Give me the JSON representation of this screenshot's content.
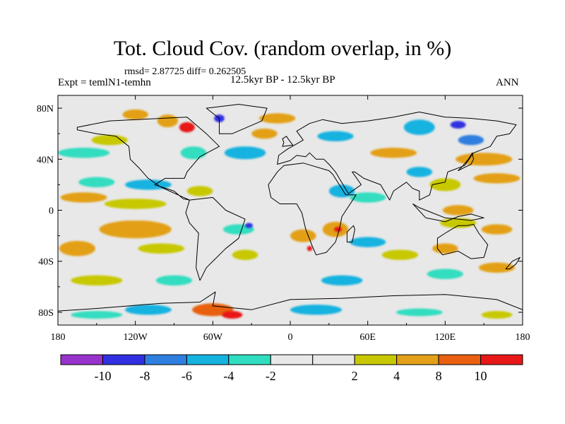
{
  "chart_data": {
    "type": "heatmap",
    "title": "Tot. Cloud Cov. (random overlap, in %)",
    "stats_text": "rmsd= 2.87725 diff= 0.262505",
    "experiment_text": "Expt = temlN1-temhn",
    "period_text": "12.5kyr BP - 12.5kyr BP",
    "season_text": "ANN",
    "x_ticks": [
      {
        "value": -180,
        "label": "180"
      },
      {
        "value": -120,
        "label": "120W"
      },
      {
        "value": -60,
        "label": "60W"
      },
      {
        "value": 0,
        "label": "0"
      },
      {
        "value": 60,
        "label": "60E"
      },
      {
        "value": 120,
        "label": "120E"
      },
      {
        "value": 180,
        "label": "180"
      }
    ],
    "y_ticks": [
      {
        "value": 80,
        "label": "80N"
      },
      {
        "value": 40,
        "label": "40N"
      },
      {
        "value": 0,
        "label": "0"
      },
      {
        "value": -40,
        "label": "40S"
      },
      {
        "value": -80,
        "label": "80S"
      }
    ],
    "xlim": [
      -180,
      180
    ],
    "ylim": [
      -90,
      90
    ],
    "colorbar": {
      "colors": [
        "#9932CC",
        "#3030E0",
        "#2E7FE0",
        "#16B2E0",
        "#30DDC0",
        "#E8E8E8",
        "#E8E8E8",
        "#C8C800",
        "#E3A018",
        "#E86010",
        "#E81818"
      ],
      "labels": [
        {
          "index": 1,
          "label": "-10"
        },
        {
          "index": 2,
          "label": "-8"
        },
        {
          "index": 3,
          "label": "-6"
        },
        {
          "index": 4,
          "label": "-4"
        },
        {
          "index": 5,
          "label": "-2"
        },
        {
          "index": 6,
          "label": "2"
        },
        {
          "index": 7,
          "label": "4"
        },
        {
          "index": 8,
          "label": "8"
        },
        {
          "index": 9,
          "label": "10"
        }
      ]
    },
    "anomaly_patches": [
      {
        "lon": -80,
        "lat": 65,
        "rlon": 6,
        "rlat": 4,
        "value": 11
      },
      {
        "lon": -95,
        "lat": 70,
        "rlon": 8,
        "rlat": 5,
        "value": 6
      },
      {
        "lon": -55,
        "lat": 72,
        "rlon": 4,
        "rlat": 3,
        "value": -9
      },
      {
        "lon": -120,
        "lat": 75,
        "rlon": 10,
        "rlat": 4,
        "value": 5
      },
      {
        "lon": -10,
        "lat": 72,
        "rlon": 14,
        "rlat": 4,
        "value": 5
      },
      {
        "lon": -160,
        "lat": 45,
        "rlon": 20,
        "rlat": 4,
        "value": -3
      },
      {
        "lon": -140,
        "lat": 55,
        "rlon": 14,
        "rlat": 4,
        "value": 3
      },
      {
        "lon": -75,
        "lat": 45,
        "rlon": 10,
        "rlat": 5,
        "value": -3
      },
      {
        "lon": -35,
        "lat": 45,
        "rlon": 16,
        "rlat": 5,
        "value": -5
      },
      {
        "lon": -20,
        "lat": 60,
        "rlon": 10,
        "rlat": 4,
        "value": 5
      },
      {
        "lon": 35,
        "lat": 58,
        "rlon": 14,
        "rlat": 4,
        "value": -4
      },
      {
        "lon": 100,
        "lat": 65,
        "rlon": 12,
        "rlat": 6,
        "value": -5
      },
      {
        "lon": 130,
        "lat": 67,
        "rlon": 6,
        "rlat": 3,
        "value": -9
      },
      {
        "lon": 140,
        "lat": 55,
        "rlon": 10,
        "rlat": 4,
        "value": -7
      },
      {
        "lon": 80,
        "lat": 45,
        "rlon": 18,
        "rlat": 4,
        "value": 4
      },
      {
        "lon": 150,
        "lat": 40,
        "rlon": 22,
        "rlat": 5,
        "value": 5
      },
      {
        "lon": 160,
        "lat": 25,
        "rlon": 18,
        "rlat": 4,
        "value": 7
      },
      {
        "lon": -160,
        "lat": 10,
        "rlon": 18,
        "rlat": 4,
        "value": 5
      },
      {
        "lon": -150,
        "lat": 22,
        "rlon": 14,
        "rlat": 4,
        "value": -3
      },
      {
        "lon": -110,
        "lat": 20,
        "rlon": 18,
        "rlat": 4,
        "value": -4
      },
      {
        "lon": -120,
        "lat": 5,
        "rlon": 24,
        "rlat": 4,
        "value": 3
      },
      {
        "lon": -70,
        "lat": 15,
        "rlon": 10,
        "rlat": 4,
        "value": 3
      },
      {
        "lon": 40,
        "lat": 15,
        "rlon": 10,
        "rlat": 5,
        "value": -5
      },
      {
        "lon": 60,
        "lat": 10,
        "rlon": 14,
        "rlat": 4,
        "value": -3
      },
      {
        "lon": 120,
        "lat": 20,
        "rlon": 12,
        "rlat": 5,
        "value": 3
      },
      {
        "lon": 100,
        "lat": 30,
        "rlon": 10,
        "rlat": 4,
        "value": -4
      },
      {
        "lon": 130,
        "lat": 0,
        "rlon": 12,
        "rlat": 4,
        "value": 4
      },
      {
        "lon": -120,
        "lat": -15,
        "rlon": 28,
        "rlat": 7,
        "value": 7
      },
      {
        "lon": -165,
        "lat": -30,
        "rlon": 14,
        "rlat": 6,
        "value": 5
      },
      {
        "lon": -100,
        "lat": -30,
        "rlon": 18,
        "rlat": 4,
        "value": 3
      },
      {
        "lon": -40,
        "lat": -15,
        "rlon": 12,
        "rlat": 4,
        "value": -3
      },
      {
        "lon": -32,
        "lat": -12,
        "rlon": 3,
        "rlat": 2,
        "value": -9
      },
      {
        "lon": -35,
        "lat": -35,
        "rlon": 10,
        "rlat": 4,
        "value": 3
      },
      {
        "lon": 10,
        "lat": -20,
        "rlon": 10,
        "rlat": 5,
        "value": 5
      },
      {
        "lon": 15,
        "lat": -30,
        "rlon": 2,
        "rlat": 2,
        "value": 11
      },
      {
        "lon": 35,
        "lat": -15,
        "rlon": 10,
        "rlat": 6,
        "value": 7
      },
      {
        "lon": 37,
        "lat": -15,
        "rlon": 3,
        "rlat": 2,
        "value": 11
      },
      {
        "lon": 60,
        "lat": -25,
        "rlon": 14,
        "rlat": 4,
        "value": -4
      },
      {
        "lon": 85,
        "lat": -35,
        "rlon": 14,
        "rlat": 4,
        "value": 3
      },
      {
        "lon": 120,
        "lat": -30,
        "rlon": 10,
        "rlat": 4,
        "value": 7
      },
      {
        "lon": 160,
        "lat": -15,
        "rlon": 12,
        "rlat": 4,
        "value": 4
      },
      {
        "lon": 130,
        "lat": -10,
        "rlon": 14,
        "rlat": 4,
        "value": 3
      },
      {
        "lon": -150,
        "lat": -55,
        "rlon": 20,
        "rlat": 4,
        "value": 3
      },
      {
        "lon": -90,
        "lat": -55,
        "rlon": 14,
        "rlat": 4,
        "value": -3
      },
      {
        "lon": 40,
        "lat": -55,
        "rlon": 16,
        "rlat": 4,
        "value": -4
      },
      {
        "lon": 120,
        "lat": -50,
        "rlon": 14,
        "rlat": 4,
        "value": -3
      },
      {
        "lon": 160,
        "lat": -45,
        "rlon": 14,
        "rlat": 4,
        "value": 4
      },
      {
        "lon": -60,
        "lat": -78,
        "rlon": 16,
        "rlat": 5,
        "value": 8
      },
      {
        "lon": -45,
        "lat": -82,
        "rlon": 8,
        "rlat": 3,
        "value": 11
      },
      {
        "lon": -110,
        "lat": -78,
        "rlon": 18,
        "rlat": 4,
        "value": -4
      },
      {
        "lon": -150,
        "lat": -82,
        "rlon": 20,
        "rlat": 3,
        "value": -3
      },
      {
        "lon": 20,
        "lat": -78,
        "rlon": 20,
        "rlat": 4,
        "value": -4
      },
      {
        "lon": 100,
        "lat": -80,
        "rlon": 18,
        "rlat": 3,
        "value": -3
      },
      {
        "lon": 160,
        "lat": -82,
        "rlon": 12,
        "rlat": 3,
        "value": 3
      }
    ],
    "land_outlines": [
      {
        "name": "north-america",
        "points": [
          [
            -165,
            65
          ],
          [
            -140,
            70
          ],
          [
            -100,
            72
          ],
          [
            -80,
            73
          ],
          [
            -65,
            60
          ],
          [
            -55,
            50
          ],
          [
            -70,
            42
          ],
          [
            -80,
            30
          ],
          [
            -82,
            25
          ],
          [
            -97,
            25
          ],
          [
            -105,
            20
          ],
          [
            -90,
            15
          ],
          [
            -83,
            9
          ],
          [
            -78,
            8
          ],
          [
            -100,
            18
          ],
          [
            -110,
            25
          ],
          [
            -117,
            33
          ],
          [
            -124,
            40
          ],
          [
            -125,
            50
          ],
          [
            -135,
            58
          ],
          [
            -150,
            60
          ],
          [
            -165,
            63
          ]
        ]
      },
      {
        "name": "greenland",
        "points": [
          [
            -55,
            60
          ],
          [
            -45,
            60
          ],
          [
            -22,
            70
          ],
          [
            -18,
            80
          ],
          [
            -40,
            83
          ],
          [
            -65,
            80
          ],
          [
            -55,
            72
          ]
        ]
      },
      {
        "name": "south-america",
        "points": [
          [
            -78,
            8
          ],
          [
            -60,
            10
          ],
          [
            -50,
            0
          ],
          [
            -35,
            -7
          ],
          [
            -40,
            -22
          ],
          [
            -50,
            -30
          ],
          [
            -58,
            -38
          ],
          [
            -65,
            -45
          ],
          [
            -70,
            -55
          ],
          [
            -73,
            -45
          ],
          [
            -72,
            -30
          ],
          [
            -71,
            -18
          ],
          [
            -78,
            -10
          ],
          [
            -81,
            -2
          ]
        ]
      },
      {
        "name": "africa",
        "points": [
          [
            -17,
            20
          ],
          [
            -10,
            30
          ],
          [
            -5,
            35
          ],
          [
            10,
            37
          ],
          [
            30,
            31
          ],
          [
            33,
            28
          ],
          [
            43,
            12
          ],
          [
            51,
            12
          ],
          [
            40,
            -5
          ],
          [
            38,
            -15
          ],
          [
            35,
            -25
          ],
          [
            28,
            -33
          ],
          [
            20,
            -35
          ],
          [
            17,
            -28
          ],
          [
            12,
            -15
          ],
          [
            9,
            -2
          ],
          [
            5,
            5
          ],
          [
            -8,
            5
          ],
          [
            -15,
            10
          ]
        ]
      },
      {
        "name": "eurasia",
        "points": [
          [
            -10,
            36
          ],
          [
            -9,
            43
          ],
          [
            -2,
            48
          ],
          [
            5,
            52
          ],
          [
            10,
            55
          ],
          [
            5,
            62
          ],
          [
            15,
            68
          ],
          [
            25,
            71
          ],
          [
            40,
            68
          ],
          [
            60,
            70
          ],
          [
            80,
            73
          ],
          [
            100,
            77
          ],
          [
            120,
            73
          ],
          [
            140,
            72
          ],
          [
            160,
            70
          ],
          [
            175,
            67
          ],
          [
            170,
            60
          ],
          [
            160,
            58
          ],
          [
            155,
            50
          ],
          [
            142,
            45
          ],
          [
            135,
            35
          ],
          [
            122,
            30
          ],
          [
            120,
            22
          ],
          [
            110,
            20
          ],
          [
            108,
            12
          ],
          [
            100,
            8
          ],
          [
            100,
            15
          ],
          [
            95,
            17
          ],
          [
            90,
            22
          ],
          [
            80,
            15
          ],
          [
            77,
            8
          ],
          [
            70,
            20
          ],
          [
            57,
            25
          ],
          [
            50,
            30
          ],
          [
            48,
            30
          ],
          [
            55,
            20
          ],
          [
            45,
            13
          ],
          [
            35,
            30
          ],
          [
            30,
            36
          ],
          [
            26,
            40
          ],
          [
            20,
            40
          ],
          [
            15,
            45
          ],
          [
            12,
            42
          ],
          [
            5,
            43
          ],
          [
            0,
            39
          ]
        ]
      },
      {
        "name": "australia",
        "points": [
          [
            114,
            -22
          ],
          [
            120,
            -18
          ],
          [
            130,
            -12
          ],
          [
            137,
            -12
          ],
          [
            142,
            -11
          ],
          [
            146,
            -18
          ],
          [
            153,
            -27
          ],
          [
            150,
            -37
          ],
          [
            140,
            -38
          ],
          [
            130,
            -32
          ],
          [
            118,
            -35
          ],
          [
            114,
            -30
          ]
        ]
      },
      {
        "name": "antarctica",
        "points": [
          [
            -180,
            -79
          ],
          [
            -150,
            -77
          ],
          [
            -100,
            -73
          ],
          [
            -70,
            -72
          ],
          [
            -58,
            -64
          ],
          [
            -60,
            -75
          ],
          [
            -30,
            -78
          ],
          [
            0,
            -70
          ],
          [
            40,
            -69
          ],
          [
            80,
            -67
          ],
          [
            120,
            -66
          ],
          [
            160,
            -70
          ],
          [
            180,
            -78
          ]
        ]
      },
      {
        "name": "indonesia",
        "points": [
          [
            95,
            5
          ],
          [
            105,
            -6
          ],
          [
            115,
            -8
          ],
          [
            120,
            -9
          ],
          [
            130,
            -5
          ],
          [
            140,
            -3
          ],
          [
            150,
            -6
          ],
          [
            140,
            -8
          ],
          [
            120,
            -6
          ],
          [
            110,
            -2
          ],
          [
            100,
            2
          ]
        ]
      },
      {
        "name": "british-isles",
        "points": [
          [
            -6,
            50
          ],
          [
            2,
            51
          ],
          [
            -1,
            55
          ],
          [
            -3,
            58
          ],
          [
            -6,
            56
          ],
          [
            -5,
            53
          ]
        ]
      },
      {
        "name": "japan",
        "points": [
          [
            130,
            31
          ],
          [
            136,
            34
          ],
          [
            140,
            36
          ],
          [
            142,
            40
          ],
          [
            141,
            45
          ],
          [
            138,
            40
          ],
          [
            133,
            34
          ]
        ]
      },
      {
        "name": "madagascar",
        "points": [
          [
            44,
            -25
          ],
          [
            48,
            -25
          ],
          [
            50,
            -15
          ],
          [
            49,
            -12
          ],
          [
            44,
            -17
          ]
        ]
      },
      {
        "name": "new-zealand",
        "points": [
          [
            167,
            -46
          ],
          [
            172,
            -40
          ],
          [
            178,
            -37
          ],
          [
            175,
            -42
          ],
          [
            170,
            -46
          ]
        ]
      }
    ]
  }
}
